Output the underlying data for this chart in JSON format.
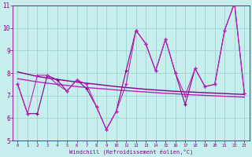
{
  "xlabel": "Windchill (Refroidissement éolien,°C)",
  "xlim": [
    -0.5,
    23.5
  ],
  "ylim": [
    5,
    11
  ],
  "yticks": [
    5,
    6,
    7,
    8,
    9,
    10,
    11
  ],
  "xticks": [
    0,
    1,
    2,
    3,
    4,
    5,
    6,
    7,
    8,
    9,
    10,
    11,
    12,
    13,
    14,
    15,
    16,
    17,
    18,
    19,
    20,
    21,
    22,
    23
  ],
  "bg_color": "#c5eeed",
  "grid_color": "#a0d8d5",
  "line_color_dark": "#880088",
  "line_color_light": "#bb22bb",
  "series1": [
    7.5,
    6.2,
    6.2,
    7.9,
    7.7,
    7.2,
    7.7,
    7.3,
    6.5,
    5.5,
    6.3,
    8.1,
    9.9,
    9.3,
    8.1,
    9.5,
    8.0,
    6.6,
    8.2,
    7.4,
    7.5,
    9.9,
    11.1,
    7.1
  ],
  "series2": [
    7.5,
    6.2,
    7.9,
    7.9,
    7.5,
    7.2,
    7.7,
    7.5,
    6.5,
    5.5,
    6.3,
    7.5,
    9.9,
    9.3,
    8.1,
    9.5,
    8.0,
    7.0,
    8.2,
    7.4,
    7.5,
    9.9,
    11.1,
    7.1
  ],
  "trend1": [
    8.05,
    7.95,
    7.85,
    7.78,
    7.72,
    7.66,
    7.6,
    7.55,
    7.5,
    7.45,
    7.4,
    7.36,
    7.32,
    7.28,
    7.25,
    7.22,
    7.19,
    7.17,
    7.15,
    7.13,
    7.11,
    7.09,
    7.07,
    7.05
  ],
  "trend2": [
    7.75,
    7.68,
    7.61,
    7.55,
    7.5,
    7.45,
    7.4,
    7.36,
    7.32,
    7.29,
    7.25,
    7.22,
    7.19,
    7.16,
    7.13,
    7.1,
    7.08,
    7.05,
    7.03,
    7.01,
    6.99,
    6.97,
    6.95,
    6.93
  ]
}
